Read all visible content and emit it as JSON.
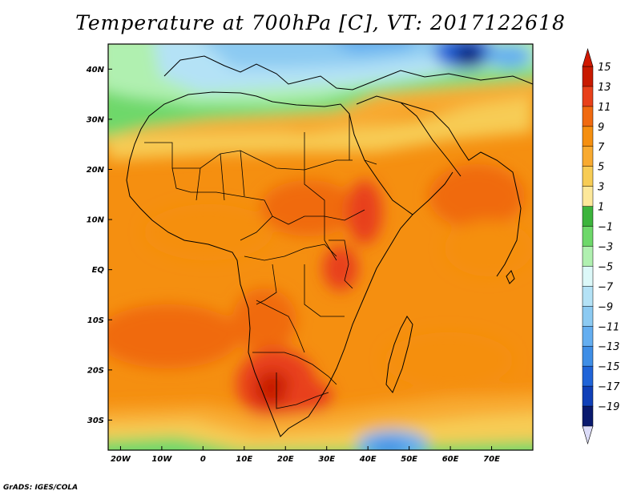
{
  "title": "Temperature at 700hPa [C], VT: 2017122618",
  "credit": "GrADS: IGES/COLA",
  "map": {
    "lon_range": [
      -23,
      80
    ],
    "lat_range": [
      -36,
      45
    ],
    "lon_ticks": [
      {
        "value": -20,
        "label": "20W"
      },
      {
        "value": -10,
        "label": "10W"
      },
      {
        "value": 0,
        "label": "0"
      },
      {
        "value": 10,
        "label": "10E"
      },
      {
        "value": 20,
        "label": "20E"
      },
      {
        "value": 30,
        "label": "30E"
      },
      {
        "value": 40,
        "label": "40E"
      },
      {
        "value": 50,
        "label": "50E"
      },
      {
        "value": 60,
        "label": "60E"
      },
      {
        "value": 70,
        "label": "70E"
      }
    ],
    "lat_ticks": [
      {
        "value": 40,
        "label": "40N"
      },
      {
        "value": 30,
        "label": "30N"
      },
      {
        "value": 20,
        "label": "20N"
      },
      {
        "value": 10,
        "label": "10N"
      },
      {
        "value": 0,
        "label": "EQ"
      },
      {
        "value": -10,
        "label": "10S"
      },
      {
        "value": -20,
        "label": "20S"
      },
      {
        "value": -30,
        "label": "30S"
      }
    ]
  },
  "colorbar": {
    "labels": [
      "15",
      "13",
      "11",
      "9",
      "7",
      "5",
      "3",
      "1",
      "−1",
      "−3",
      "−5",
      "−7",
      "−9",
      "−11",
      "−13",
      "−15",
      "−17",
      "−19"
    ],
    "colors": [
      "#c81a00",
      "#e8401a",
      "#f06a10",
      "#f58f10",
      "#f8aa30",
      "#f7cc55",
      "#fde89a",
      "#3cb43c",
      "#6ed86a",
      "#b0f0b0",
      "#dcf8f8",
      "#b4e2f6",
      "#8ccaf2",
      "#64aef0",
      "#3f8ee6",
      "#2064d8",
      "#1040b8",
      "#0a1a6e"
    ]
  }
}
